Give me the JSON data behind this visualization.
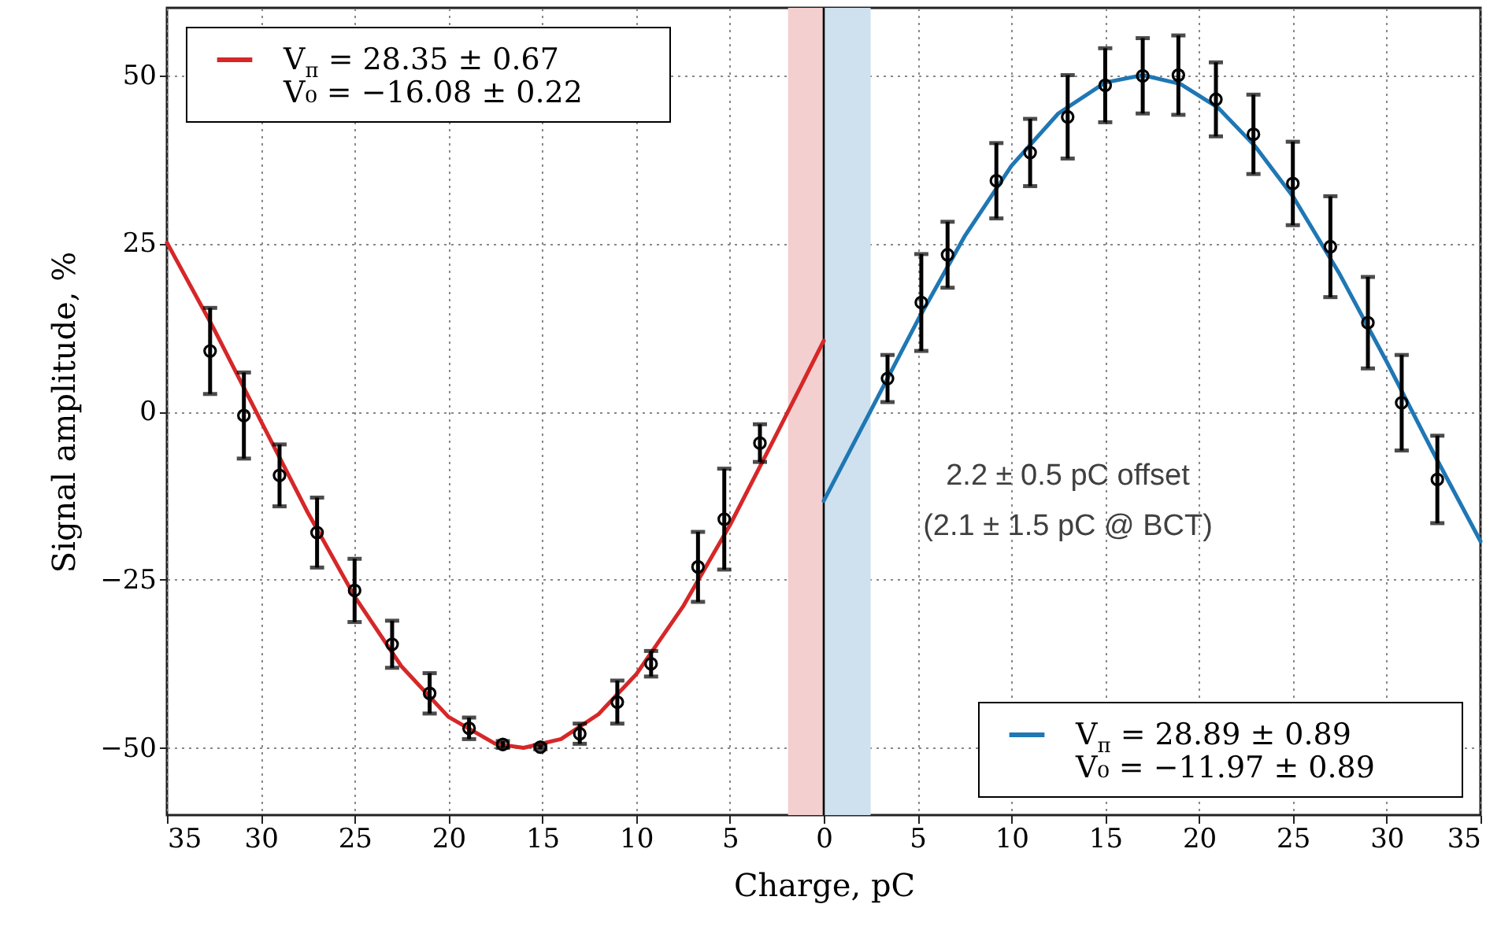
{
  "chart_data": {
    "type": "line",
    "xlabel": "Charge, pC",
    "ylabel": "Signal amplitude, %",
    "xlim": [
      -35,
      35
    ],
    "xticks": [
      {
        "value": -35,
        "label": "35"
      },
      {
        "value": -30,
        "label": "30"
      },
      {
        "value": -25,
        "label": "25"
      },
      {
        "value": -20,
        "label": "20"
      },
      {
        "value": -15,
        "label": "15"
      },
      {
        "value": -10,
        "label": "10"
      },
      {
        "value": -5,
        "label": "5"
      },
      0,
      5,
      10,
      15,
      20,
      25,
      30,
      35
    ],
    "ylim": [
      -60,
      60
    ],
    "yticks": [
      -50,
      -25,
      0,
      25,
      50
    ],
    "grid": true,
    "legend": "top left",
    "series": [
      {
        "type": "line",
        "name": "V$_{π}$ = 28.35 ± 0.67\nV₀ = −16.08 ± 0.22",
        "color": "#d62728",
        "x": [
          -35,
          -32.5,
          -30,
          -27.5,
          -25,
          -22.5,
          -20,
          -17.5,
          -16,
          -14,
          -12,
          -10,
          -7.5,
          -5,
          -2.5,
          0
        ],
        "values": [
          25.1,
          12.3,
          -1.4,
          -15.0,
          -27.5,
          -37.9,
          -45.4,
          -49.4,
          -50,
          -48.7,
          -45.0,
          -39.1,
          -29.0,
          -16.9,
          -3.3,
          10.5
        ]
      },
      {
        "type": "line",
        "name": "V$_{π}$ = 28.89 ± 0.89\nV₀ = −11.97 ± 0.89",
        "color": "#1f77b4",
        "x": [
          0,
          2.5,
          5,
          7.5,
          10,
          12.5,
          15,
          17,
          19,
          21,
          23,
          25,
          27.5,
          30,
          32.5,
          35
        ],
        "values": [
          -13.3,
          0.1,
          13.5,
          26.0,
          36.5,
          44.3,
          48.9,
          50,
          48.7,
          45.2,
          39.4,
          32.0,
          20.4,
          7.4,
          -6.2,
          -19.3
        ]
      },
      {
        "type": "scatter",
        "marker": "circle",
        "color": "#000000",
        "x": [
          -32.7,
          -30.9,
          -29.0,
          -27.0,
          -25.0,
          -23.0,
          -21.0,
          -18.9,
          -17.1,
          -15.1,
          -13.0,
          -11.0,
          -9.2,
          -6.7,
          -5.3,
          -3.4
        ],
        "values": [
          9.0,
          -0.6,
          -9.5,
          -18.0,
          -26.6,
          -34.6,
          -41.9,
          -47.1,
          -49.5,
          -49.9,
          -47.9,
          -43.2,
          -37.5,
          -23.1,
          -16.0,
          -4.7
        ],
        "errors": [
          6.4,
          6.4,
          4.6,
          5.2,
          4.7,
          3.5,
          3.0,
          1.6,
          0.5,
          0.3,
          1.5,
          3.2,
          1.9,
          5.2,
          7.5,
          2.8
        ]
      },
      {
        "type": "scatter",
        "marker": "circle",
        "color": "#000000",
        "x": [
          3.4,
          5.2,
          6.6,
          9.2,
          11.0,
          13.0,
          15.0,
          17.0,
          18.9,
          20.9,
          22.9,
          25.0,
          27.0,
          29.0,
          30.8,
          32.7
        ],
        "values": [
          4.9,
          16.2,
          23.3,
          34.3,
          38.5,
          43.8,
          48.5,
          49.9,
          50.0,
          46.4,
          41.2,
          33.9,
          24.5,
          13.2,
          1.3,
          -10.1
        ],
        "errors": [
          3.5,
          7.2,
          4.9,
          5.6,
          5.0,
          6.2,
          5.5,
          5.6,
          5.9,
          5.5,
          5.9,
          6.2,
          7.5,
          6.8,
          7.1,
          6.5
        ]
      }
    ],
    "bands": [
      {
        "axis": "x",
        "from": -1.9,
        "to": 0,
        "color": "#f4cfcf"
      },
      {
        "axis": "x",
        "from": 0,
        "to": 2.5,
        "color": "#cfe1ef"
      }
    ],
    "ref_lines": [
      {
        "axis": "x",
        "value": 0,
        "color": "#000000"
      }
    ],
    "annotations": [
      "2.2 ± 0.5 pC offset",
      "(2.1 ± 1.5 pC @ BCT)"
    ]
  }
}
